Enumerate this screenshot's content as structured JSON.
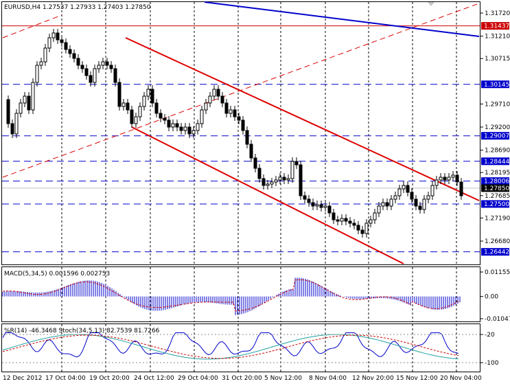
{
  "title": {
    "symbol_tf": "EURUSD,H4",
    "ohlc": "1.27537 1.27933 1.27403 1.27850"
  },
  "price_axis": {
    "ticks": [
      {
        "label": "1.31720",
        "price": 1.3172
      },
      {
        "label": "1.31210",
        "price": 1.3121
      },
      {
        "label": "1.30715",
        "price": 1.30715
      },
      {
        "label": "1.29710",
        "price": 1.2971
      },
      {
        "label": "1.29200",
        "price": 1.292
      },
      {
        "label": "1.28690",
        "price": 1.2869
      },
      {
        "label": "1.28195",
        "price": 1.28195
      },
      {
        "label": "1.27685",
        "price": 1.27685
      },
      {
        "label": "1.27190",
        "price": 1.2719
      },
      {
        "label": "1.26680",
        "price": 1.2668
      }
    ],
    "levels": [
      {
        "label": "1.31437",
        "price": 1.31437,
        "kind": "red"
      },
      {
        "label": "1.30145",
        "price": 1.30145,
        "kind": "blue"
      },
      {
        "label": "1.29007",
        "price": 1.29007,
        "kind": "blue"
      },
      {
        "label": "1.28444",
        "price": 1.28444,
        "kind": "blue"
      },
      {
        "label": "1.28006",
        "price": 1.28006,
        "kind": "blue"
      },
      {
        "label": "1.27850",
        "price": 1.2785,
        "kind": "current"
      },
      {
        "label": "1.27500",
        "price": 1.275,
        "kind": "blue"
      },
      {
        "label": "1.26442",
        "price": 1.26442,
        "kind": "blue"
      }
    ]
  },
  "time_axis": {
    "labels": [
      "12 Dec 2012",
      "17 Oct 04:00",
      "19 Oct 20:00",
      "24 Oct 12:00",
      "29 Oct 04:00",
      "31 Oct 20:00",
      "5 Nov 12:00",
      "8 Nov 04:00",
      "12 Nov 20:00",
      "15 Nov 12:00",
      "20 Nov 04:00"
    ]
  },
  "macd": {
    "label": "MACD(5,34,5) 0.001596 0.002753",
    "ticks": [
      {
        "label": "0.01155",
        "value": 0.01155
      },
      {
        "label": "0.00",
        "value": 0
      },
      {
        "label": "-0.01047",
        "value": -0.01047
      }
    ]
  },
  "stoch": {
    "label": "%R(14) -46.3468 Stoch(34,5,13) 82.7539 81.7266",
    "ticks": [
      {
        "label": "-20",
        "value": 80
      },
      {
        "label": "-100",
        "value": 0
      }
    ]
  },
  "colors": {
    "level_line": "#0000cc",
    "resistance_line": "#cc0000",
    "current_label_bg": "#000000",
    "channel": "#dd0000",
    "trend_blue": "#0000cc",
    "wpr_line": "#0000cc",
    "stoch_main": "#20a0a0",
    "stoch_signal": "#cc0000",
    "macd_hist": "#0000cc",
    "macd_signal": "#cc0000"
  },
  "icons": {
    "corner": "sell-arrow-icon"
  }
}
